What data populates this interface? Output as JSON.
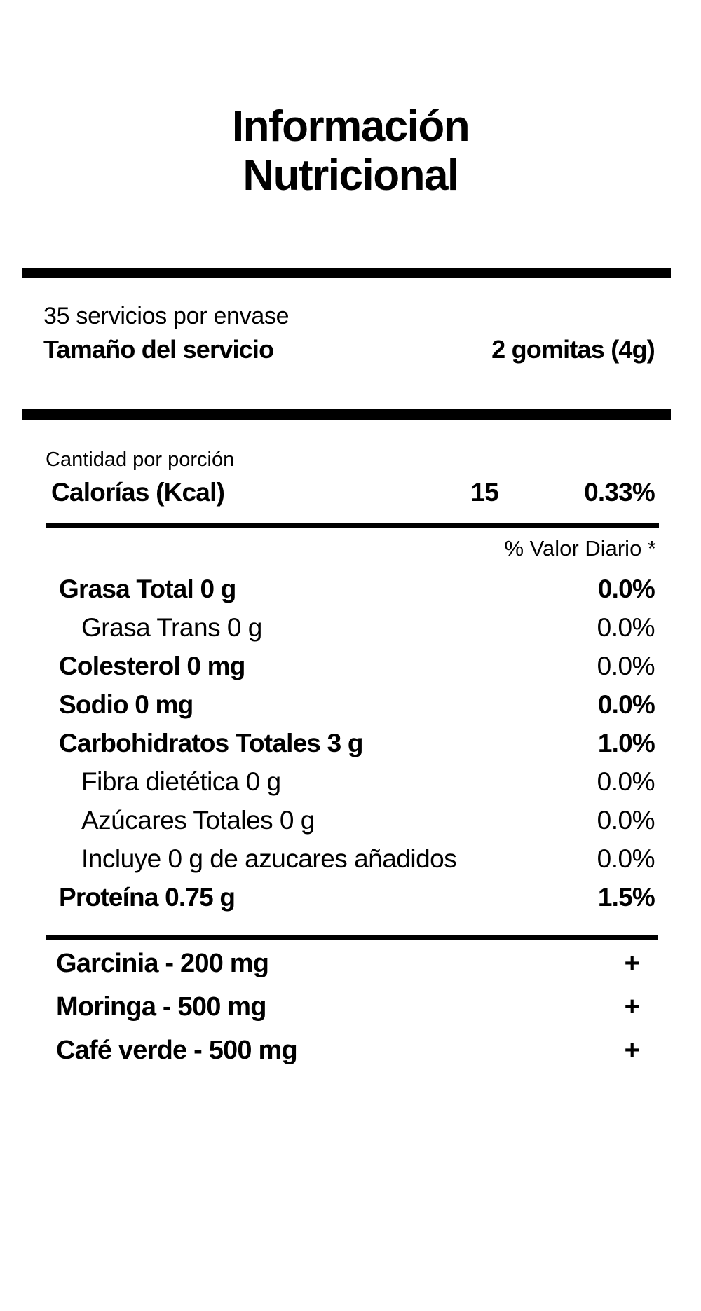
{
  "title": {
    "line1": "Información",
    "line2": "Nutricional"
  },
  "serving": {
    "servings_per_container": "35 servicios por envase",
    "serving_size_label": "Tamaño del servicio",
    "serving_size_value": "2 gomitas (4g)"
  },
  "calories": {
    "section_label": "Cantidad por porción",
    "label": "Calorías (Kcal)",
    "value": "15",
    "daily_value": "0.33%"
  },
  "daily_value_header": "% Valor Diario *",
  "nutrients": [
    {
      "label": "Grasa Total 0 g",
      "dv": "0.0%",
      "indent": 0,
      "bold_label": true,
      "bold_dv": true
    },
    {
      "label": "Grasa Trans 0 g",
      "dv": "0.0%",
      "indent": 1,
      "bold_label": false,
      "bold_dv": false
    },
    {
      "label": "Colesterol 0 mg",
      "dv": "0.0%",
      "indent": 0,
      "bold_label": true,
      "bold_dv": false
    },
    {
      "label": "Sodio 0 mg",
      "dv": "0.0%",
      "indent": 0,
      "bold_label": true,
      "bold_dv": true
    },
    {
      "label": "Carbohidratos Totales 3 g",
      "dv": "1.0%",
      "indent": 0,
      "bold_label": true,
      "bold_dv": true
    },
    {
      "label": "Fibra dietética 0 g",
      "dv": "0.0%",
      "indent": 1,
      "bold_label": false,
      "bold_dv": false
    },
    {
      "label": "Azúcares Totales 0 g",
      "dv": "0.0%",
      "indent": 1,
      "bold_label": false,
      "bold_dv": false
    },
    {
      "label": "Incluye 0 g de azucares añadidos",
      "dv": "0.0%",
      "indent": 1,
      "bold_label": false,
      "bold_dv": false
    },
    {
      "label": "Proteína 0.75 g",
      "dv": "1.5%",
      "indent": 0,
      "bold_label": true,
      "bold_dv": true
    }
  ],
  "supplements": [
    {
      "label": "Garcinia - 200 mg",
      "value": "+"
    },
    {
      "label": "Moringa - 500 mg",
      "value": "+"
    },
    {
      "label": "Café verde - 500 mg",
      "value": "+"
    }
  ],
  "colors": {
    "text": "#000000",
    "background": "#ffffff"
  }
}
